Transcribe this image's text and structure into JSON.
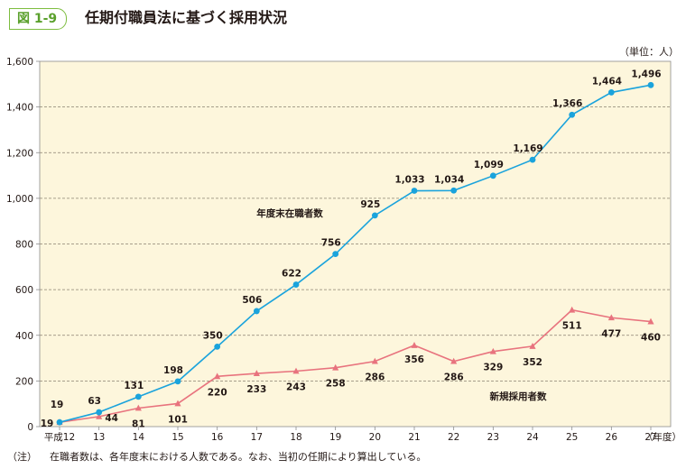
{
  "figure": {
    "number": "図 1-9",
    "title": "任期付職員法に基づく採用状況",
    "unit": "（単位：人）",
    "note_label": "（注）",
    "note_text": "在職者数は、各年度末における人数である。なお、当初の任期により算出している。"
  },
  "chart_data": {
    "type": "line",
    "title": "任期付職員法に基づく採用状況",
    "xlabel": "（年度）",
    "ylabel": "（単位：人）",
    "categories": [
      "平成12",
      "13",
      "14",
      "15",
      "16",
      "17",
      "18",
      "19",
      "20",
      "21",
      "22",
      "23",
      "24",
      "25",
      "26",
      "27"
    ],
    "y_ticks": [
      "0",
      "200",
      "400",
      "600",
      "800",
      "1,000",
      "1,200",
      "1,400",
      "1,600"
    ],
    "ylim": [
      0,
      1600
    ],
    "grid": true,
    "series": [
      {
        "name": "年度末在職者数",
        "color": "#1aa3dc",
        "marker": "circle",
        "values": [
          19,
          63,
          131,
          198,
          350,
          506,
          622,
          756,
          925,
          1033,
          1034,
          1099,
          1169,
          1366,
          1464,
          1496
        ],
        "labels": [
          "19",
          "63",
          "131",
          "198",
          "350",
          "506",
          "622",
          "756",
          "925",
          "1,033",
          "1,034",
          "1,099",
          "1,169",
          "1,366",
          "1,464",
          "1,496"
        ]
      },
      {
        "name": "新規採用者数",
        "color": "#e8737e",
        "marker": "triangle",
        "values": [
          19,
          44,
          81,
          101,
          220,
          233,
          243,
          258,
          286,
          356,
          286,
          329,
          352,
          511,
          477,
          460
        ],
        "labels": [
          "19",
          "44",
          "81",
          "101",
          "220",
          "233",
          "243",
          "258",
          "286",
          "356",
          "286",
          "329",
          "352",
          "511",
          "477",
          "460"
        ]
      }
    ]
  }
}
